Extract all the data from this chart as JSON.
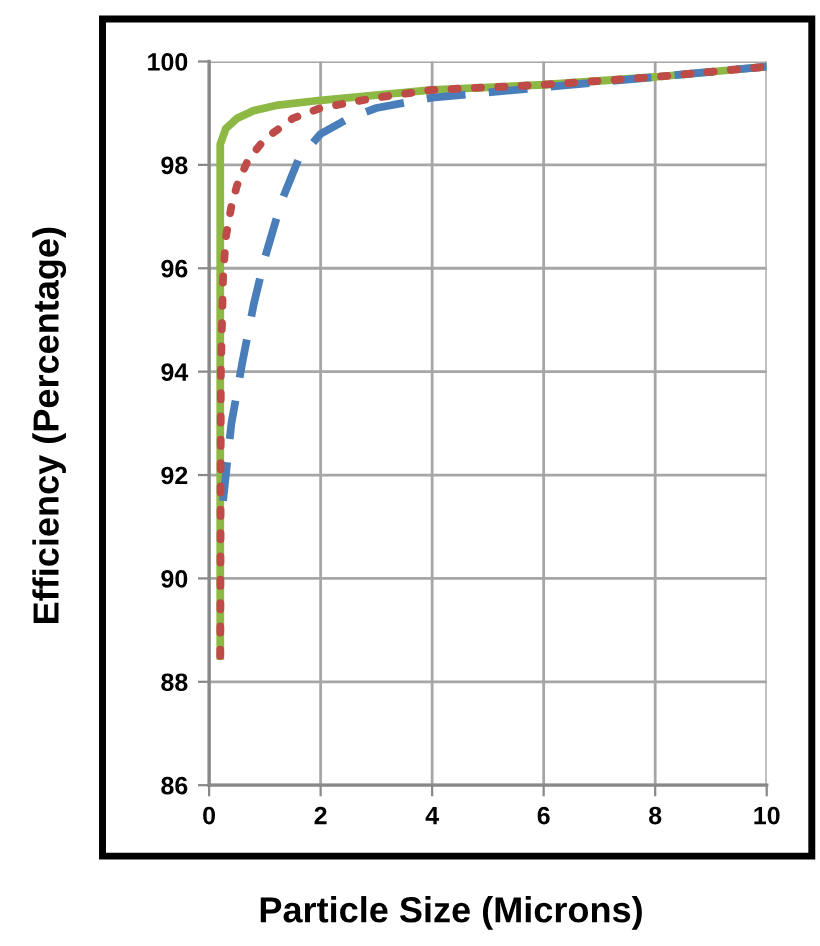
{
  "chart_data": {
    "type": "line",
    "xlabel": "Particle Size (Microns)",
    "ylabel": "Efficiency (Percentage)",
    "xlim": [
      0,
      10
    ],
    "ylim": [
      86,
      100
    ],
    "xticks": [
      0,
      2,
      4,
      6,
      8,
      10
    ],
    "yticks": [
      86,
      88,
      90,
      92,
      94,
      96,
      98,
      100
    ],
    "grid": true,
    "legend": false,
    "series": [
      {
        "color": "#4a7ebb",
        "line_style": "dashed",
        "x": [
          0.25,
          0.4,
          0.6,
          0.8,
          1.0,
          1.3,
          1.6,
          2.0,
          2.5,
          3,
          4,
          6,
          8,
          10
        ],
        "values": [
          91.5,
          93,
          94.2,
          95.3,
          96.2,
          97.3,
          98.1,
          98.6,
          98.9,
          99.1,
          99.3,
          99.5,
          99.7,
          99.9
        ]
      },
      {
        "color": "#be4b48",
        "line_style": "dotted",
        "x": [
          0.2,
          0.21,
          0.25,
          0.3,
          0.4,
          0.5,
          0.7,
          1.0,
          1.5,
          2,
          3,
          4,
          6,
          8,
          10
        ],
        "values": [
          88.5,
          94,
          95.8,
          96.6,
          97.2,
          97.6,
          98.1,
          98.5,
          98.9,
          99.1,
          99.3,
          99.45,
          99.55,
          99.7,
          99.9
        ]
      },
      {
        "color": "#8cb843",
        "line_style": "solid",
        "x": [
          0.2,
          0.2,
          0.3,
          0.5,
          0.8,
          1.2,
          2,
          3,
          4,
          6,
          8,
          10
        ],
        "values": [
          88.5,
          98.4,
          98.7,
          98.9,
          99.05,
          99.15,
          99.25,
          99.35,
          99.45,
          99.55,
          99.7,
          99.9
        ]
      }
    ]
  }
}
